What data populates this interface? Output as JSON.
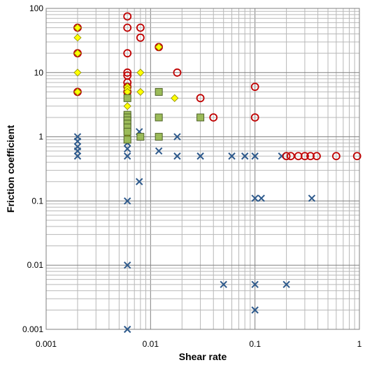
{
  "chart_data": {
    "type": "scatter",
    "title": "",
    "xlabel": "Shear rate",
    "ylabel": "Friction coefficient",
    "x_scale": "log",
    "y_scale": "log",
    "xlim": [
      0.001,
      1
    ],
    "ylim": [
      0.001,
      100
    ],
    "x_ticks": [
      "0.001",
      "0.01",
      "0.1",
      "1"
    ],
    "y_ticks": [
      "0.001",
      "0.01",
      "0.1",
      "1",
      "10",
      "100"
    ],
    "grid": "major and minor",
    "legend": "none",
    "series": [
      {
        "marker": "cross",
        "color": "#2E5A8C",
        "points": [
          [
            0.002,
            1.0
          ],
          [
            0.002,
            0.85
          ],
          [
            0.002,
            0.7
          ],
          [
            0.002,
            0.6
          ],
          [
            0.002,
            0.5
          ],
          [
            0.006,
            1.0
          ],
          [
            0.006,
            0.8
          ],
          [
            0.006,
            0.65
          ],
          [
            0.006,
            0.5
          ],
          [
            0.006,
            0.1
          ],
          [
            0.006,
            0.01
          ],
          [
            0.006,
            0.001
          ],
          [
            0.0078,
            1.2
          ],
          [
            0.0078,
            0.2
          ],
          [
            0.012,
            2.0
          ],
          [
            0.012,
            1.0
          ],
          [
            0.012,
            0.6
          ],
          [
            0.018,
            1.0
          ],
          [
            0.018,
            0.5
          ],
          [
            0.03,
            0.5
          ],
          [
            0.05,
            0.005
          ],
          [
            0.06,
            0.5
          ],
          [
            0.08,
            0.5
          ],
          [
            0.1,
            0.5
          ],
          [
            0.1,
            0.11
          ],
          [
            0.1,
            0.005
          ],
          [
            0.1,
            0.002
          ],
          [
            0.115,
            0.11
          ],
          [
            0.18,
            0.5
          ],
          [
            0.2,
            0.005
          ],
          [
            0.35,
            0.11
          ]
        ]
      },
      {
        "marker": "circle",
        "color": "#C00000",
        "points": [
          [
            0.002,
            50
          ],
          [
            0.002,
            20
          ],
          [
            0.002,
            5
          ],
          [
            0.006,
            75
          ],
          [
            0.006,
            50
          ],
          [
            0.006,
            20
          ],
          [
            0.006,
            10
          ],
          [
            0.006,
            9
          ],
          [
            0.006,
            7
          ],
          [
            0.006,
            6
          ],
          [
            0.006,
            5
          ],
          [
            0.008,
            50
          ],
          [
            0.008,
            35
          ],
          [
            0.012,
            25
          ],
          [
            0.018,
            10
          ],
          [
            0.03,
            4
          ],
          [
            0.04,
            2
          ],
          [
            0.1,
            6
          ],
          [
            0.1,
            2
          ],
          [
            0.2,
            0.5
          ],
          [
            0.22,
            0.5
          ],
          [
            0.26,
            0.5
          ],
          [
            0.3,
            0.5
          ],
          [
            0.34,
            0.5
          ],
          [
            0.39,
            0.5
          ],
          [
            0.6,
            0.5
          ],
          [
            0.95,
            0.5
          ]
        ]
      },
      {
        "marker": "diamond",
        "color": "#FFFF00",
        "points": [
          [
            0.002,
            50
          ],
          [
            0.002,
            35
          ],
          [
            0.002,
            20
          ],
          [
            0.002,
            10
          ],
          [
            0.002,
            5
          ],
          [
            0.006,
            6
          ],
          [
            0.006,
            5.5
          ],
          [
            0.006,
            5
          ],
          [
            0.006,
            3
          ],
          [
            0.006,
            2
          ],
          [
            0.006,
            1.5
          ],
          [
            0.006,
            1
          ],
          [
            0.008,
            10
          ],
          [
            0.008,
            5
          ],
          [
            0.012,
            25
          ],
          [
            0.017,
            4
          ]
        ]
      },
      {
        "marker": "square",
        "color": "#9BBB59",
        "points": [
          [
            0.006,
            4
          ],
          [
            0.006,
            2.2
          ],
          [
            0.006,
            2
          ],
          [
            0.006,
            1.8
          ],
          [
            0.006,
            1.6
          ],
          [
            0.006,
            1.4
          ],
          [
            0.006,
            1.2
          ],
          [
            0.006,
            0.9
          ],
          [
            0.008,
            1
          ],
          [
            0.012,
            5
          ],
          [
            0.012,
            2
          ],
          [
            0.012,
            1
          ],
          [
            0.03,
            2
          ]
        ]
      }
    ]
  }
}
